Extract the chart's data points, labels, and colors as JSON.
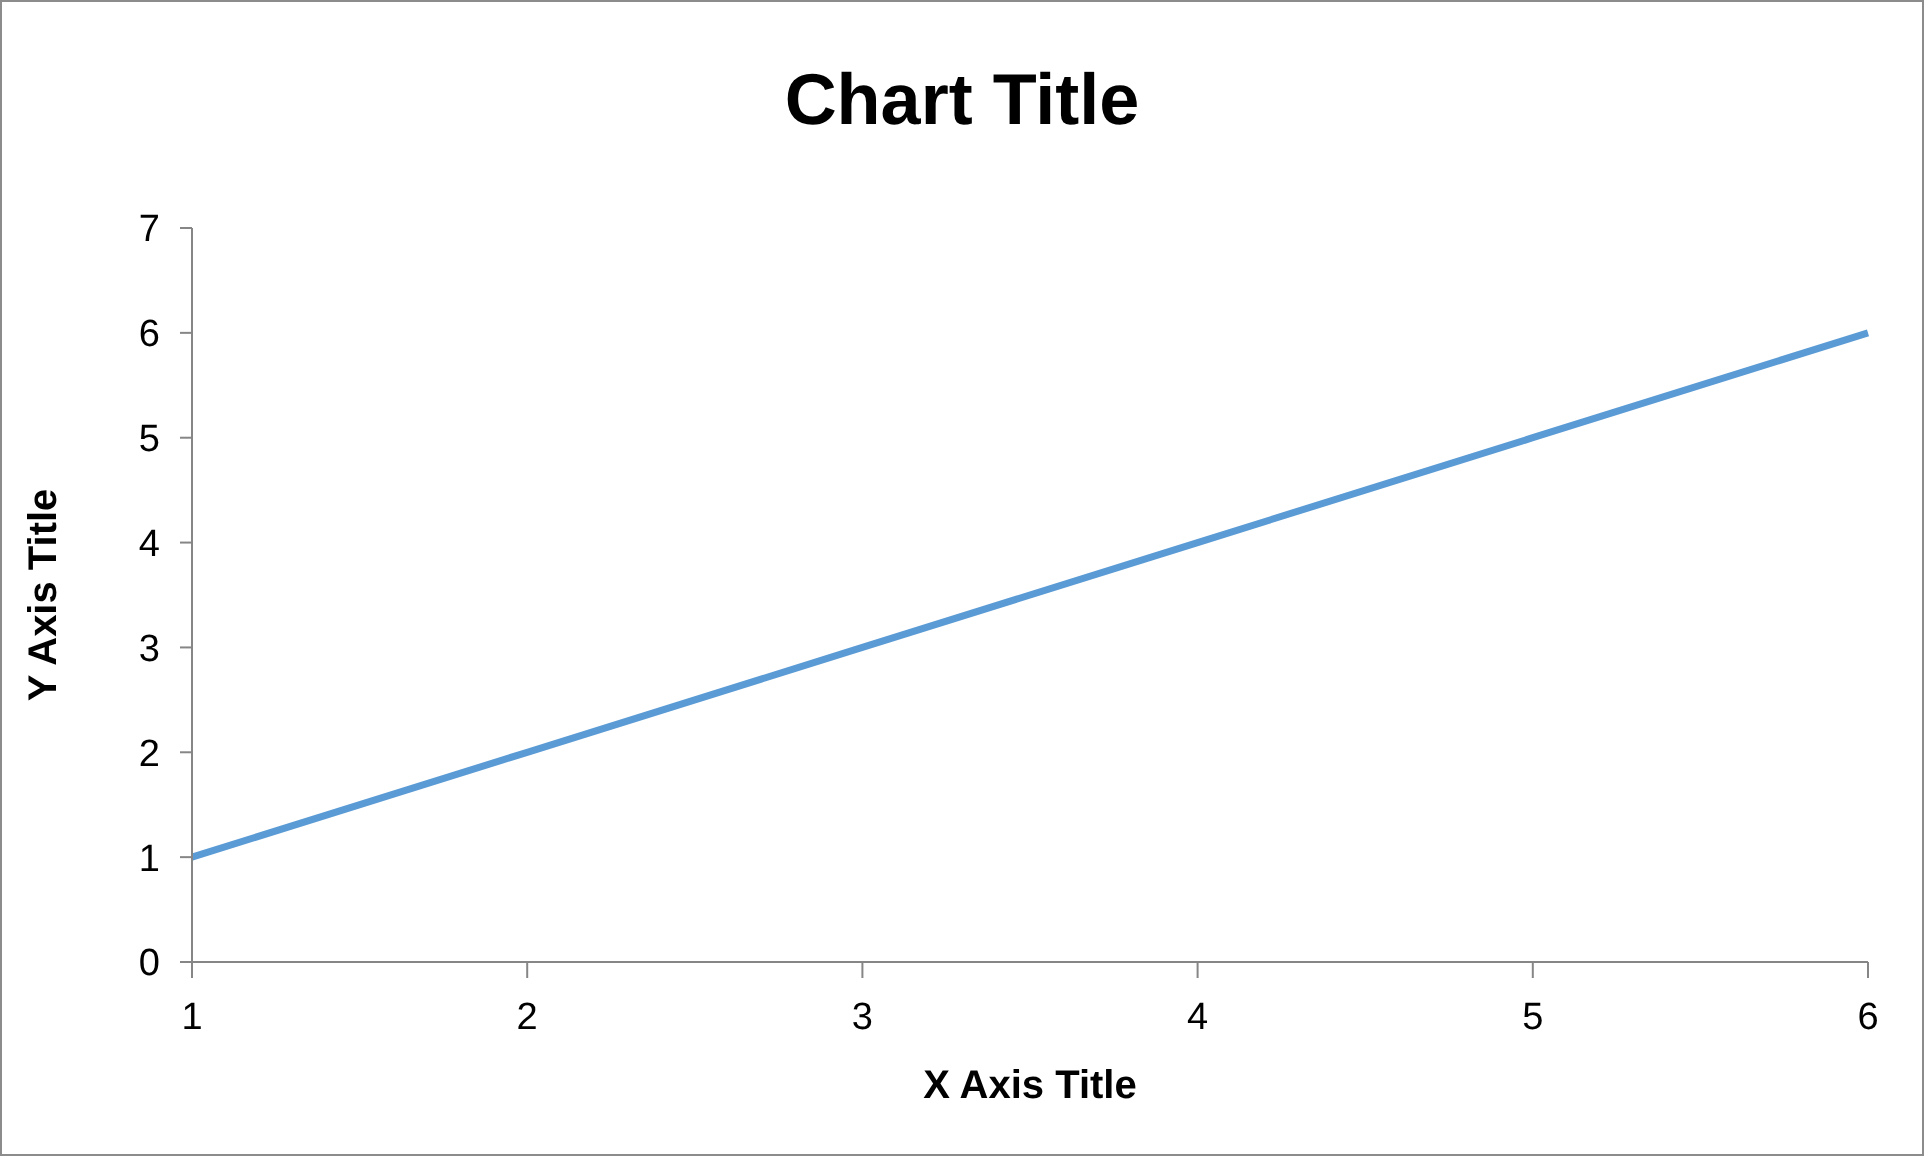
{
  "chart_data": {
    "type": "line",
    "title": "Chart Title",
    "xlabel": "X Axis Title",
    "ylabel": "Y Axis Title",
    "categories": [
      "1",
      "2",
      "3",
      "4",
      "5",
      "6"
    ],
    "series": [
      {
        "color": "#5b9bd5",
        "values": [
          1,
          2,
          3,
          4,
          5,
          6
        ]
      }
    ],
    "ylim": [
      0,
      7
    ],
    "yticks": [
      0,
      1,
      2,
      3,
      4,
      5,
      6,
      7
    ],
    "grid": false,
    "legend": false,
    "marker": "none",
    "line_style": "solid"
  }
}
